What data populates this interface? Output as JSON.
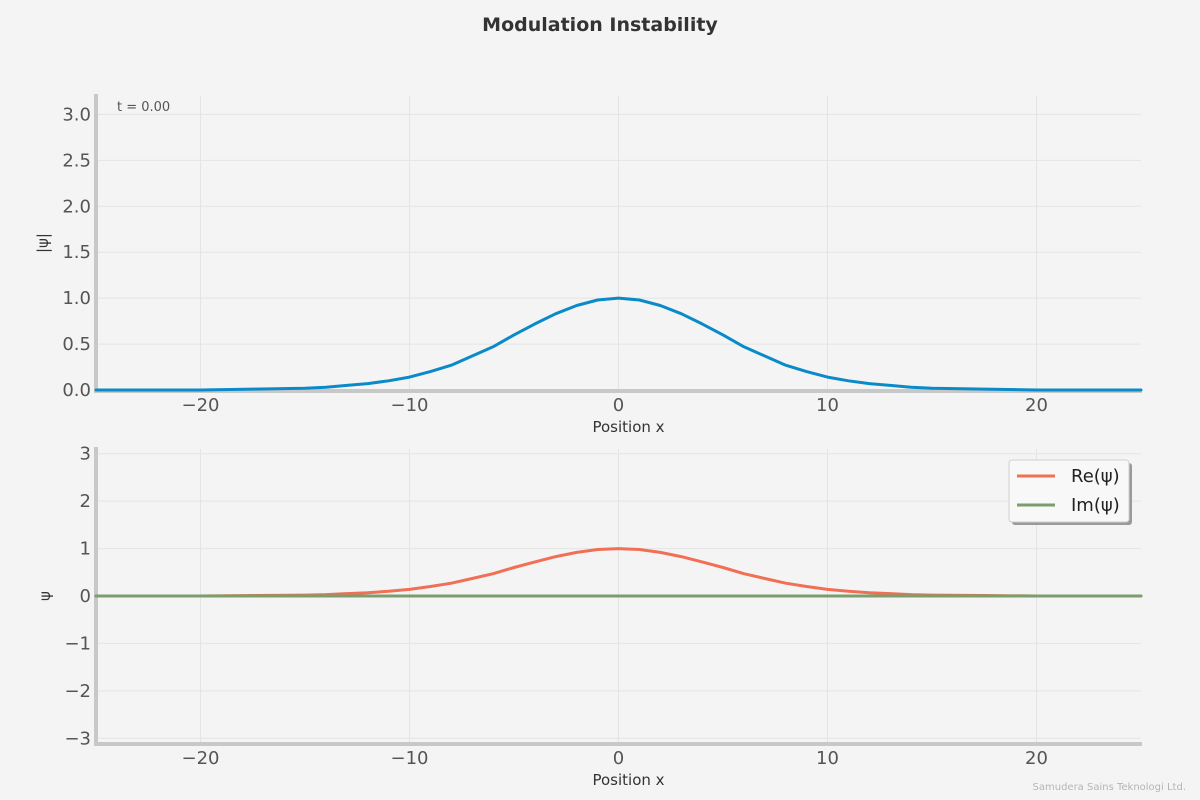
{
  "title": "Modulation Instability",
  "watermark": "Samudera Sains Teknologi Ltd.",
  "chart_data": [
    {
      "type": "line",
      "annotation": "t = 0.00",
      "xlabel": "Position x",
      "ylabel": "|ψ|",
      "xlim": [
        -25,
        25
      ],
      "ylim": [
        0,
        3.2
      ],
      "xticks": [
        "−20",
        "−10",
        "0",
        "10",
        "20"
      ],
      "xtick_values": [
        -20,
        -10,
        0,
        10,
        20
      ],
      "yticks": [
        "0.0",
        "0.5",
        "1.0",
        "1.5",
        "2.0",
        "2.5",
        "3.0"
      ],
      "ytick_values": [
        0,
        0.5,
        1,
        1.5,
        2,
        2.5,
        3
      ],
      "grid": true,
      "series": [
        {
          "color": "#0a8ac9",
          "x": [
            -25,
            -22.5,
            -20,
            -17.5,
            -15,
            -14,
            -13,
            -12,
            -11,
            -10,
            -9,
            -8,
            -7,
            -6,
            -5,
            -4,
            -3,
            -2,
            -1,
            0,
            1,
            2,
            3,
            4,
            5,
            6,
            7,
            8,
            9,
            10,
            11,
            12,
            13,
            14,
            15,
            17.5,
            20,
            22.5,
            25
          ],
          "values": [
            0.0,
            0.0,
            0.0,
            0.01,
            0.02,
            0.03,
            0.05,
            0.07,
            0.1,
            0.14,
            0.2,
            0.27,
            0.37,
            0.47,
            0.6,
            0.72,
            0.83,
            0.92,
            0.98,
            1.0,
            0.98,
            0.92,
            0.83,
            0.72,
            0.6,
            0.47,
            0.37,
            0.27,
            0.2,
            0.14,
            0.1,
            0.07,
            0.05,
            0.03,
            0.02,
            0.01,
            0.0,
            0.0,
            0.0
          ]
        }
      ]
    },
    {
      "type": "line",
      "xlabel": "Position x",
      "ylabel": "ψ",
      "xlim": [
        -25,
        25
      ],
      "ylim": [
        -3.1,
        3.1
      ],
      "xticks": [
        "−20",
        "−10",
        "0",
        "10",
        "20"
      ],
      "xtick_values": [
        -20,
        -10,
        0,
        10,
        20
      ],
      "yticks": [
        "−3",
        "−2",
        "−1",
        "0",
        "1",
        "2",
        "3"
      ],
      "ytick_values": [
        -3,
        -2,
        -1,
        0,
        1,
        2,
        3
      ],
      "grid": true,
      "legend": "top-right",
      "series": [
        {
          "name": "Re(ψ)",
          "color": "#f06f55",
          "x": [
            -25,
            -22.5,
            -20,
            -17.5,
            -15,
            -14,
            -13,
            -12,
            -11,
            -10,
            -9,
            -8,
            -7,
            -6,
            -5,
            -4,
            -3,
            -2,
            -1,
            0,
            1,
            2,
            3,
            4,
            5,
            6,
            7,
            8,
            9,
            10,
            11,
            12,
            13,
            14,
            15,
            17.5,
            20,
            22.5,
            25
          ],
          "values": [
            0.0,
            0.0,
            0.0,
            0.01,
            0.02,
            0.03,
            0.05,
            0.07,
            0.1,
            0.14,
            0.2,
            0.27,
            0.37,
            0.47,
            0.6,
            0.72,
            0.83,
            0.92,
            0.98,
            1.0,
            0.98,
            0.92,
            0.83,
            0.72,
            0.6,
            0.47,
            0.37,
            0.27,
            0.2,
            0.14,
            0.1,
            0.07,
            0.05,
            0.03,
            0.02,
            0.01,
            0.0,
            0.0,
            0.0
          ]
        },
        {
          "name": "Im(ψ)",
          "color": "#7a9e6c",
          "x": [
            -25,
            -20,
            -15,
            -10,
            -5,
            0,
            5,
            10,
            15,
            20,
            25
          ],
          "values": [
            0,
            0,
            0,
            0,
            0,
            0,
            0,
            0,
            0,
            0,
            0
          ]
        }
      ]
    }
  ]
}
